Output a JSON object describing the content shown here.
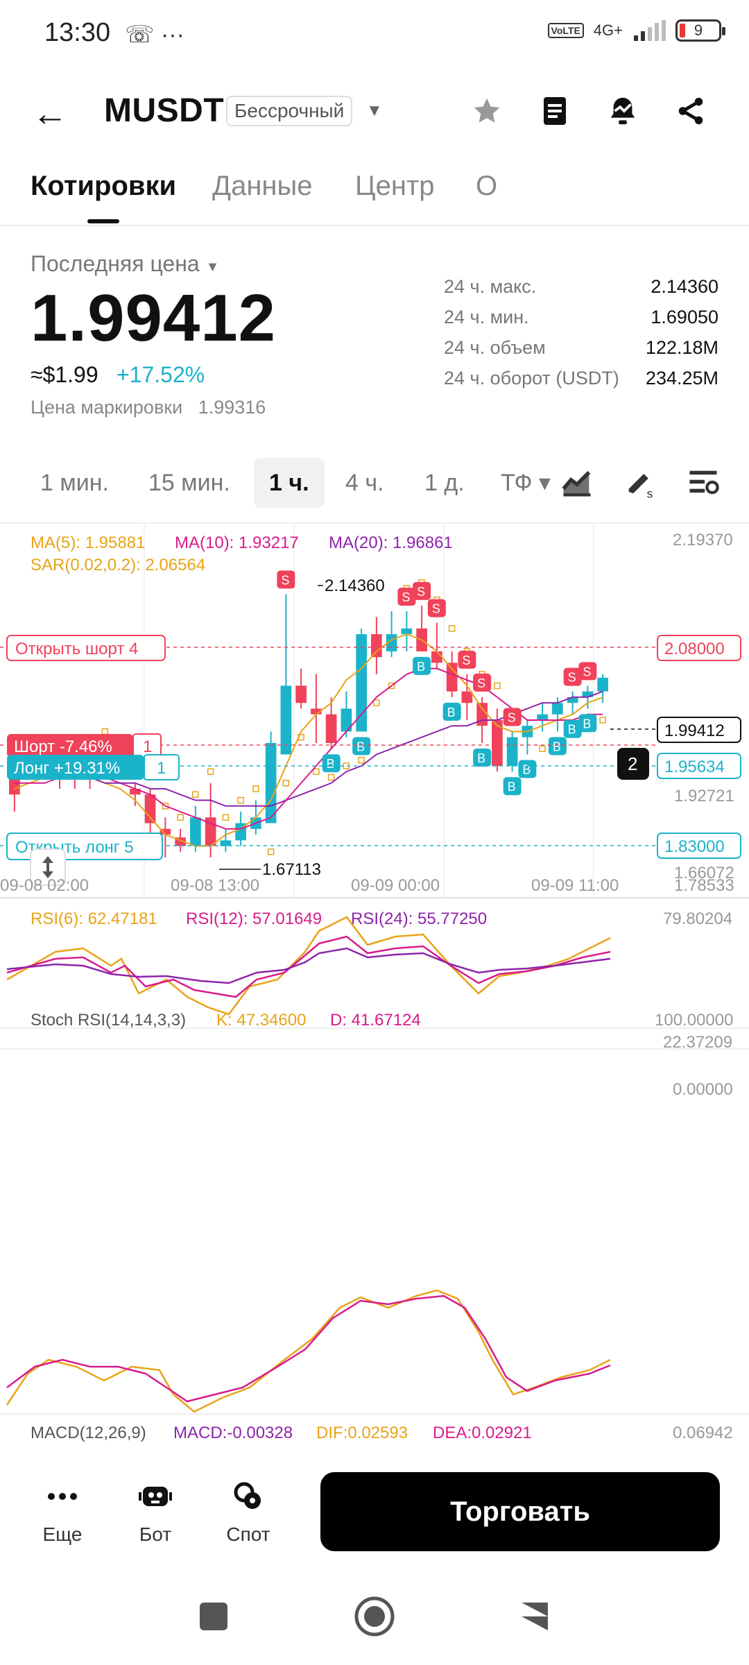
{
  "status": {
    "time": "13:30",
    "icons": "☏ ···",
    "volte": "VoLTE",
    "network": "4G+",
    "battery": "9"
  },
  "header": {
    "symbol": "MUSDT",
    "type_badge": "Бессрочный"
  },
  "tabs": [
    {
      "label": "Котировки",
      "active": true
    },
    {
      "label": "Данные",
      "active": false
    },
    {
      "label": "Центр",
      "active": false
    },
    {
      "label": "О",
      "active": false
    }
  ],
  "price": {
    "last_label": "Последняя цена",
    "value": "1.99412",
    "usd": "≈$1.99",
    "change": "+17.52%",
    "mark_label": "Цена маркировки",
    "mark_value": "1.99316"
  },
  "stats": [
    {
      "label": "24 ч. макс.",
      "value": "2.14360"
    },
    {
      "label": "24 ч. мин.",
      "value": "1.69050"
    },
    {
      "label": "24 ч. объем",
      "value": "122.18M"
    },
    {
      "label": "24 ч. оборот (USDT)",
      "value": "234.25M"
    }
  ],
  "timeframes": [
    {
      "label": "1 мин.",
      "active": false
    },
    {
      "label": "15 мин.",
      "active": false
    },
    {
      "label": "1 ч.",
      "active": true
    },
    {
      "label": "4 ч.",
      "active": false
    },
    {
      "label": "1 д.",
      "active": false
    },
    {
      "label": "ТФ ▾",
      "active": false
    }
  ],
  "colors": {
    "up": "#1bb3c9",
    "down": "#f0425a",
    "ma5": "#e8a317",
    "ma10": "#d81b8c",
    "ma20": "#8e24aa",
    "sar": "#e8a317"
  },
  "indicators": {
    "ma5": "MA(5): 1.95881",
    "ma10": "MA(10): 1.93217",
    "ma20": "MA(20): 1.96861",
    "sar": "SAR(0.02,0.2): 2.06564",
    "rsi6": "RSI(6): 62.47181",
    "rsi12": "RSI(12): 57.01649",
    "rsi24": "RSI(24): 55.77250",
    "stoch": "Stoch RSI(14,14,3,3)",
    "stoch_k": "K: 47.34600",
    "stoch_d": "D: 41.67124",
    "macd": "MACD(12,26,9)",
    "macd_v": "MACD:-0.00328",
    "dif": "DIF:0.02593",
    "dea": "DEA:0.02921"
  },
  "orders": {
    "open_short": "Открыть шорт 4",
    "short_pos": "Шорт -7.46%",
    "short_qty": "1",
    "long_pos": "Лонг +19.31%",
    "long_qty": "1",
    "open_long": "Открыть лонг 5",
    "group_count": "2"
  },
  "price_axis": [
    "2.19370",
    "2.08000",
    "1.99412",
    "1.95634",
    "1.92721",
    "1.83000",
    "1.78533",
    "1.66072"
  ],
  "time_axis": [
    "09-08 02:00",
    "09-08 13:00",
    "09-09 00:00",
    "09-09 11:00"
  ],
  "chart_labels": {
    "high": "2.14360",
    "low": "1.67113",
    "rsi_max": "79.80204",
    "rsi_min": "22.37209",
    "stoch_max": "100.00000",
    "stoch_min": "0.00000",
    "macd_max": "0.06942"
  },
  "chart_data": {
    "type": "candlestick",
    "ylim": [
      1.6607,
      2.1937
    ],
    "candles": [
      [
        1.83,
        1.86,
        1.76,
        1.79
      ],
      [
        1.85,
        1.87,
        1.83,
        1.84
      ],
      [
        1.85,
        1.86,
        1.82,
        1.84
      ],
      [
        1.85,
        1.86,
        1.8,
        1.83
      ],
      [
        1.84,
        1.85,
        1.8,
        1.83
      ],
      [
        1.83,
        1.85,
        1.8,
        1.82
      ],
      [
        1.86,
        1.88,
        1.84,
        1.85
      ],
      [
        1.86,
        1.87,
        1.82,
        1.83
      ],
      [
        1.8,
        1.81,
        1.77,
        1.79
      ],
      [
        1.79,
        1.8,
        1.7,
        1.74
      ],
      [
        1.73,
        1.75,
        1.68,
        1.72
      ],
      [
        1.715,
        1.73,
        1.69,
        1.7
      ],
      [
        1.7,
        1.77,
        1.69,
        1.75
      ],
      [
        1.75,
        1.81,
        1.68,
        1.7
      ],
      [
        1.7,
        1.73,
        1.69,
        1.71
      ],
      [
        1.71,
        1.76,
        1.7,
        1.74
      ],
      [
        1.73,
        1.78,
        1.72,
        1.75
      ],
      [
        1.74,
        1.9,
        1.74,
        1.88
      ],
      [
        1.86,
        2.14,
        1.86,
        1.98
      ],
      [
        1.98,
        2.01,
        1.94,
        1.95
      ],
      [
        1.94,
        2.0,
        1.88,
        1.93
      ],
      [
        1.93,
        1.96,
        1.87,
        1.88
      ],
      [
        1.9,
        1.97,
        1.89,
        1.94
      ],
      [
        1.9,
        2.08,
        1.9,
        2.07
      ],
      [
        2.07,
        2.1,
        2.0,
        2.03
      ],
      [
        2.04,
        2.11,
        2.03,
        2.07
      ],
      [
        2.07,
        2.11,
        2.04,
        2.08
      ],
      [
        2.08,
        2.12,
        2.04,
        2.04
      ],
      [
        2.04,
        2.09,
        2.01,
        2.02
      ],
      [
        2.02,
        2.04,
        1.96,
        1.97
      ],
      [
        1.97,
        2.0,
        1.92,
        1.95
      ],
      [
        1.95,
        1.96,
        1.88,
        1.91
      ],
      [
        1.92,
        1.94,
        1.83,
        1.84
      ],
      [
        1.84,
        1.9,
        1.83,
        1.89
      ],
      [
        1.89,
        1.92,
        1.86,
        1.91
      ],
      [
        1.92,
        1.95,
        1.9,
        1.93
      ],
      [
        1.93,
        1.96,
        1.9,
        1.95
      ],
      [
        1.95,
        1.97,
        1.93,
        1.96
      ],
      [
        1.96,
        1.98,
        1.94,
        1.97
      ],
      [
        1.97,
        2.0,
        1.95,
        1.994
      ]
    ],
    "ma5": [
      1.8,
      1.81,
      1.82,
      1.83,
      1.83,
      1.82,
      1.81,
      1.8,
      1.78,
      1.75,
      1.72,
      1.71,
      1.7,
      1.7,
      1.72,
      1.73,
      1.75,
      1.78,
      1.84,
      1.9,
      1.93,
      1.95,
      1.99,
      2.01,
      2.04,
      2.06,
      2.07,
      2.06,
      2.04,
      2.01,
      1.98,
      1.94,
      1.91,
      1.9,
      1.9,
      1.91,
      1.92,
      1.93,
      1.95,
      1.96
    ],
    "ma10": [
      1.81,
      1.81,
      1.81,
      1.82,
      1.82,
      1.82,
      1.82,
      1.81,
      1.8,
      1.79,
      1.77,
      1.76,
      1.75,
      1.74,
      1.73,
      1.73,
      1.74,
      1.75,
      1.78,
      1.81,
      1.84,
      1.87,
      1.9,
      1.93,
      1.96,
      1.98,
      2.0,
      2.01,
      2.01,
      2.0,
      1.99,
      1.98,
      1.96,
      1.94,
      1.92,
      1.92,
      1.92,
      1.92,
      1.93,
      1.93
    ],
    "ma20": [
      1.82,
      1.82,
      1.82,
      1.82,
      1.82,
      1.82,
      1.81,
      1.81,
      1.81,
      1.8,
      1.8,
      1.79,
      1.78,
      1.78,
      1.77,
      1.77,
      1.77,
      1.77,
      1.78,
      1.79,
      1.8,
      1.81,
      1.83,
      1.84,
      1.86,
      1.87,
      1.88,
      1.89,
      1.9,
      1.91,
      1.91,
      1.92,
      1.92,
      1.93,
      1.94,
      1.95,
      1.95,
      1.96,
      1.96,
      1.97
    ]
  }
}
